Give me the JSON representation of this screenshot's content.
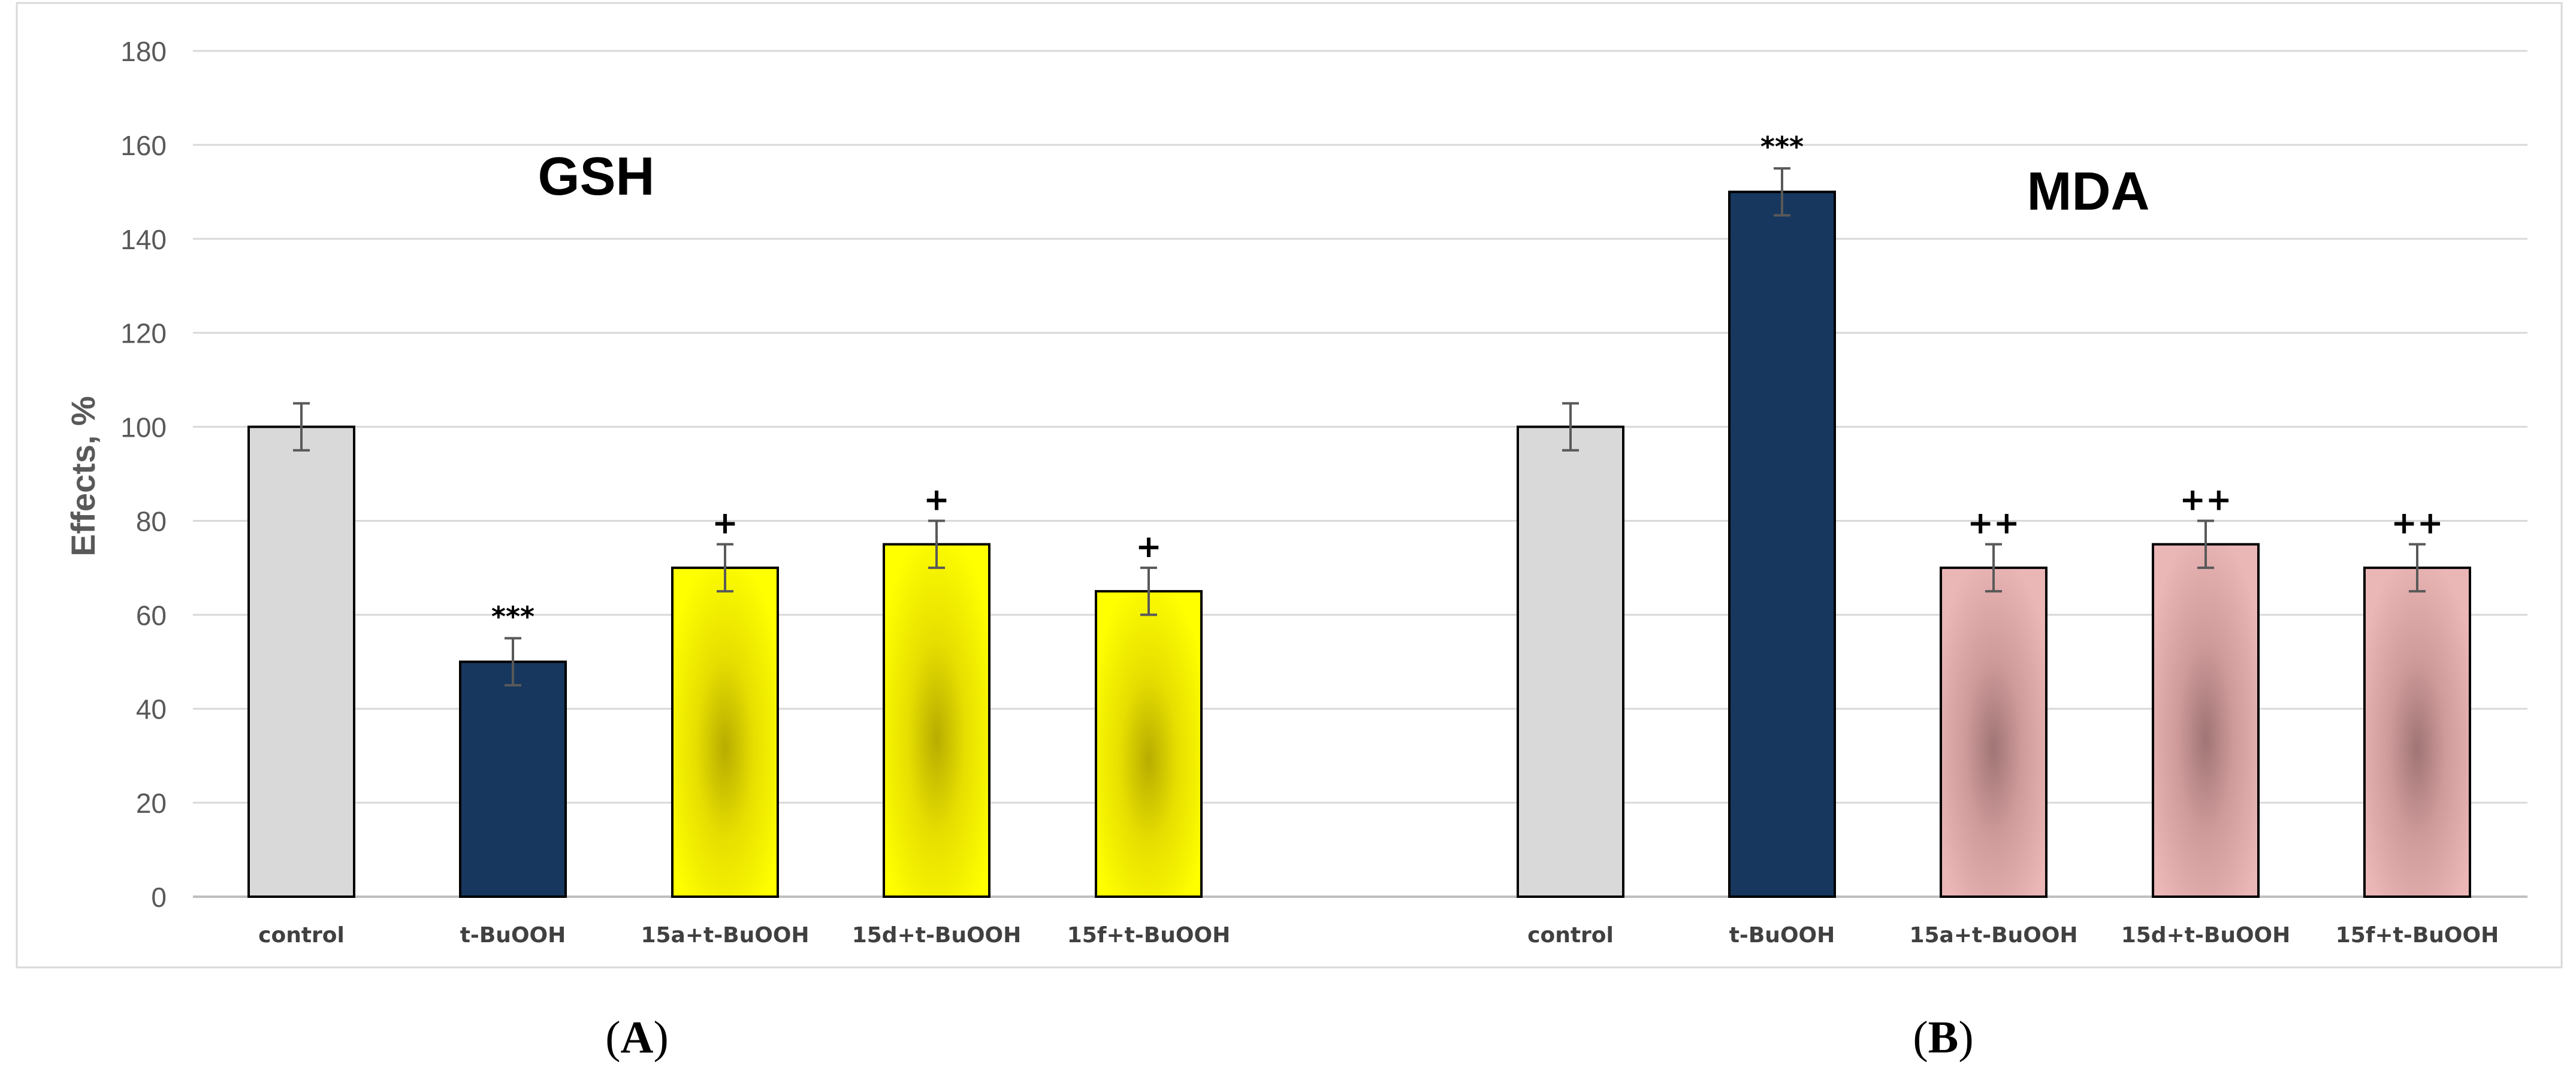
{
  "chart_data": {
    "type": "bar",
    "ylabel": "Effects, %",
    "ylim": [
      0,
      180
    ],
    "yticks": [
      0,
      20,
      40,
      60,
      80,
      100,
      120,
      140,
      160,
      180
    ],
    "grid": true,
    "groups": [
      {
        "title": "GSH",
        "panel_label": "A",
        "categories": [
          "control",
          "t-BuOOH",
          "15a+t-BuOOH",
          "15d+t-BuOOH",
          "15f+t-BuOOH"
        ],
        "values": [
          100,
          50,
          70,
          75,
          65
        ],
        "errors": [
          5,
          5,
          5,
          5,
          5
        ],
        "significance": [
          "",
          "***",
          "+",
          "+",
          "+"
        ],
        "colors": [
          "#d9d9d9",
          "#17375e",
          "#ffff00",
          "#ffff00",
          "#ffff00"
        ]
      },
      {
        "title": "MDA",
        "panel_label": "B",
        "categories": [
          "control",
          "t-BuOOH",
          "15a+t-BuOOH",
          "15d+t-BuOOH",
          "15f+t-BuOOH"
        ],
        "values": [
          100,
          150,
          70,
          75,
          70
        ],
        "errors": [
          5,
          5,
          5,
          5,
          5
        ],
        "significance": [
          "",
          "***",
          "++",
          "++",
          "++"
        ],
        "colors": [
          "#d9d9d9",
          "#17375e",
          "#e6b0b0",
          "#e6b0b0",
          "#e6b0b0"
        ]
      }
    ]
  }
}
